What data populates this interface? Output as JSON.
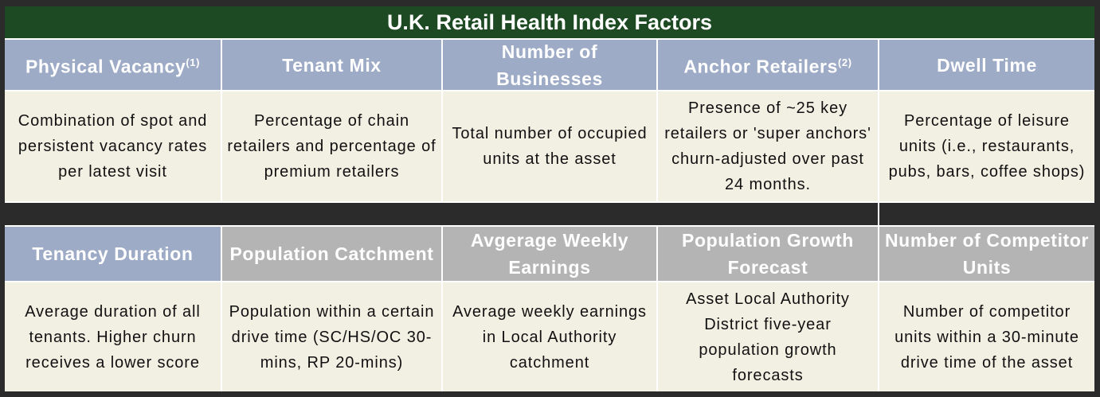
{
  "title": "U.K. Retail Health Index Factors",
  "rows": [
    {
      "cells": [
        {
          "header": "Physical Vacancy",
          "note": "(1)",
          "description": "Combination of spot and persistent vacancy rates per latest visit"
        },
        {
          "header": "Tenant Mix",
          "description": "Percentage of chain retailers and percentage of premium retailers"
        },
        {
          "header": "Number of Businesses",
          "description": "Total number of occupied units at the asset"
        },
        {
          "header": "Anchor Retailers",
          "note": "(2)",
          "description": "Presence of ~25 key retailers or 'super anchors' churn-adjusted over past 24 months."
        },
        {
          "header": "Dwell Time",
          "description": "Percentage of leisure units (i.e., restaurants, pubs, bars, coffee shops)"
        }
      ]
    },
    {
      "cells": [
        {
          "header": "Tenancy Duration",
          "description": "Average duration of all tenants. Higher churn receives a lower score"
        },
        {
          "header": "Population Catchment",
          "description": "Population within a certain drive time (SC/HS/OC 30-mins, RP 20-mins)"
        },
        {
          "header": "Avgerage Weekly Earnings",
          "description": "Average weekly earnings in Local Authority catchment"
        },
        {
          "header": "Population Growth Forecast",
          "description": "Asset Local Authority District five-year population growth forecasts"
        },
        {
          "header": "Number of Competitor Units",
          "description": "Number of competitor units within a 30-minute drive time of the asset"
        }
      ]
    }
  ]
}
